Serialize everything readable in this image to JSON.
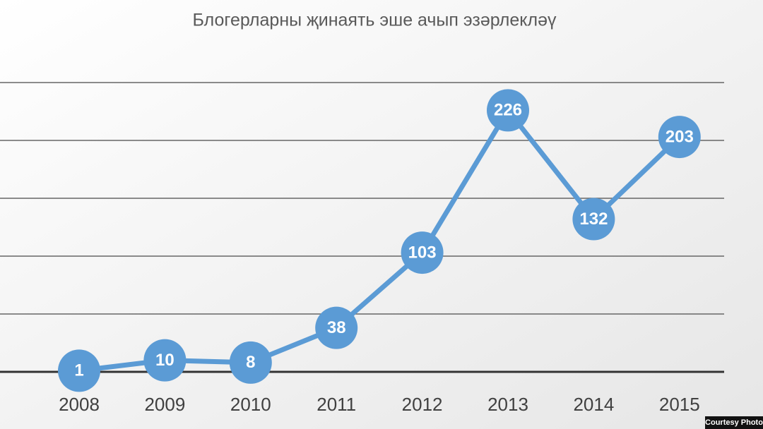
{
  "chart_data": {
    "type": "line",
    "title": "Блогерларны җинаять эше ачып эзәрлекләү",
    "categories": [
      "2008",
      "2009",
      "2010",
      "2011",
      "2012",
      "2013",
      "2014",
      "2015"
    ],
    "values": [
      1,
      10,
      8,
      38,
      103,
      226,
      132,
      203
    ],
    "color": "#5b9bd5",
    "ylim": [
      0,
      250
    ],
    "yticks": [
      0,
      50,
      100,
      150,
      200,
      250
    ],
    "grid": true
  },
  "credit": "Courtesy Photo"
}
